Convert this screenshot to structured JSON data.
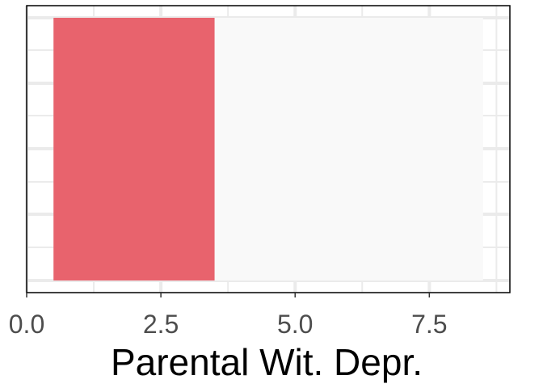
{
  "chart_data": {
    "type": "bar",
    "orientation": "horizontal",
    "title": "",
    "xlabel": "Parental Wit. Depr.",
    "ylabel": "",
    "xlim": [
      0,
      9
    ],
    "xticks": [
      0.0,
      2.5,
      5.0,
      7.5
    ],
    "xtick_labels": [
      "0.0",
      "2.5",
      "5.0",
      "7.5"
    ],
    "grid": true,
    "legend": "none",
    "background_range": [
      0.5,
      8.5
    ],
    "bars": [
      {
        "start": 0.5,
        "end": 3.5,
        "color": "#e8606a"
      }
    ],
    "colors": {
      "bar": "#e8606a",
      "background_bar": "#f9f9f9",
      "grid": "#ebebeb",
      "panel_border": "#000000"
    }
  }
}
